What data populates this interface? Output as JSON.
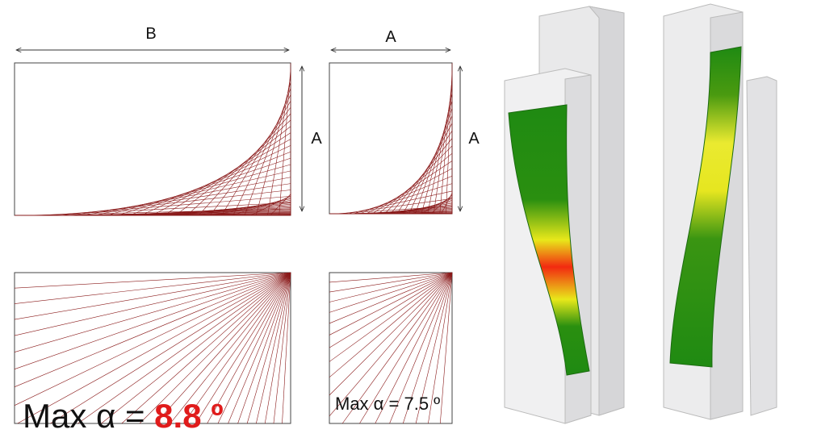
{
  "panels": [
    {
      "dimension_top": "B",
      "dimension_side": "A",
      "max_label": "Max α = ",
      "max_value": "8.8 º"
    },
    {
      "dimension_top": "A",
      "dimension_side": "A",
      "max_label": "Max α = 7.5 º"
    }
  ]
}
